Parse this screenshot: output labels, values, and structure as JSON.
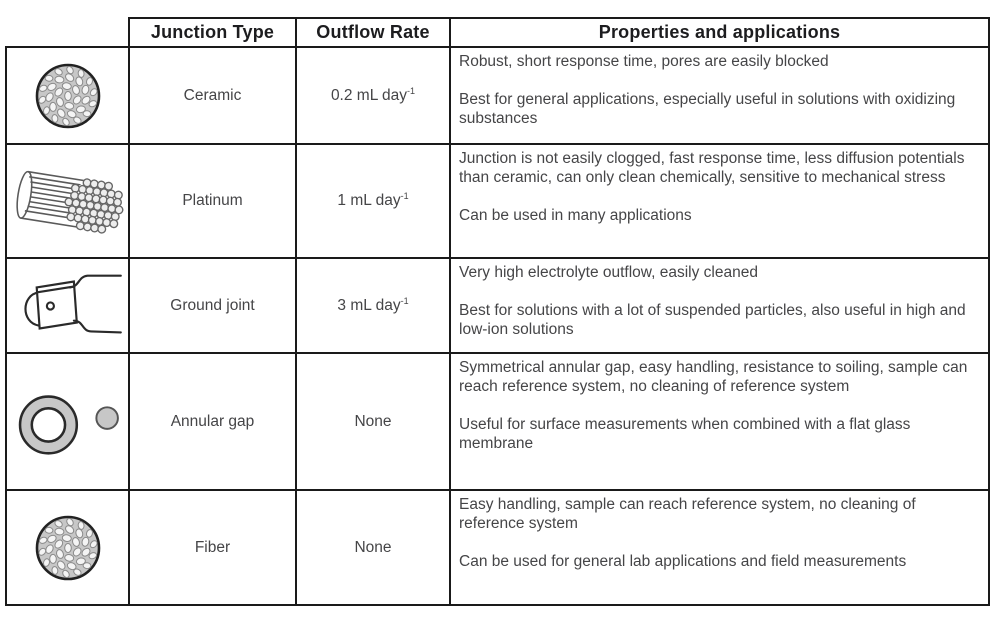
{
  "header": {
    "junction_type": "Junction Type",
    "outflow_rate": "Outflow Rate",
    "properties": "Properties and applications"
  },
  "rows": [
    {
      "icon": "ceramic-cross-section-icon",
      "type": "Ceramic",
      "rate": {
        "base": "0.2 mL day",
        "sup": "-1"
      },
      "properties": [
        "Robust, short response time, pores are easily blocked",
        "Best for general applications, especially useful in solutions with oxidizing substances"
      ]
    },
    {
      "icon": "platinum-wire-bundle-icon",
      "type": "Platinum",
      "rate": {
        "base": "1 mL day",
        "sup": "-1"
      },
      "properties": [
        "Junction is not easily clogged, fast response time, less diffusion potentials than ceramic, can only clean chemically, sensitive to mechanical stress",
        "Can be used in many applications"
      ]
    },
    {
      "icon": "ground-joint-schematic-icon",
      "type": "Ground joint",
      "rate": {
        "base": "3 mL day",
        "sup": "-1"
      },
      "properties": [
        "Very high electrolyte outflow, easily cleaned",
        "Best for solutions with a lot of suspended particles, also useful in high and low-ion solutions"
      ]
    },
    {
      "icon": "annular-gap-icon",
      "type": "Annular gap",
      "rate": {
        "base": "None",
        "sup": ""
      },
      "properties": [
        "Symmetrical annular gap, easy handling, resistance to soiling, sample can reach reference system, no cleaning of reference system",
        "Useful for surface measurements when combined with a flat glass membrane"
      ]
    },
    {
      "icon": "fiber-cross-section-icon",
      "type": "Fiber",
      "rate": {
        "base": "None",
        "sup": ""
      },
      "properties": [
        "Easy handling, sample can reach reference system, no cleaning of reference system",
        "Can be used for general lab applications and field measurements"
      ]
    }
  ],
  "colors": {
    "border": "#1a1a1a",
    "header_text": "#1d1d1f",
    "body_text": "#454547",
    "icon_fill": "#c7c7c7",
    "icon_stroke": "#222222"
  }
}
